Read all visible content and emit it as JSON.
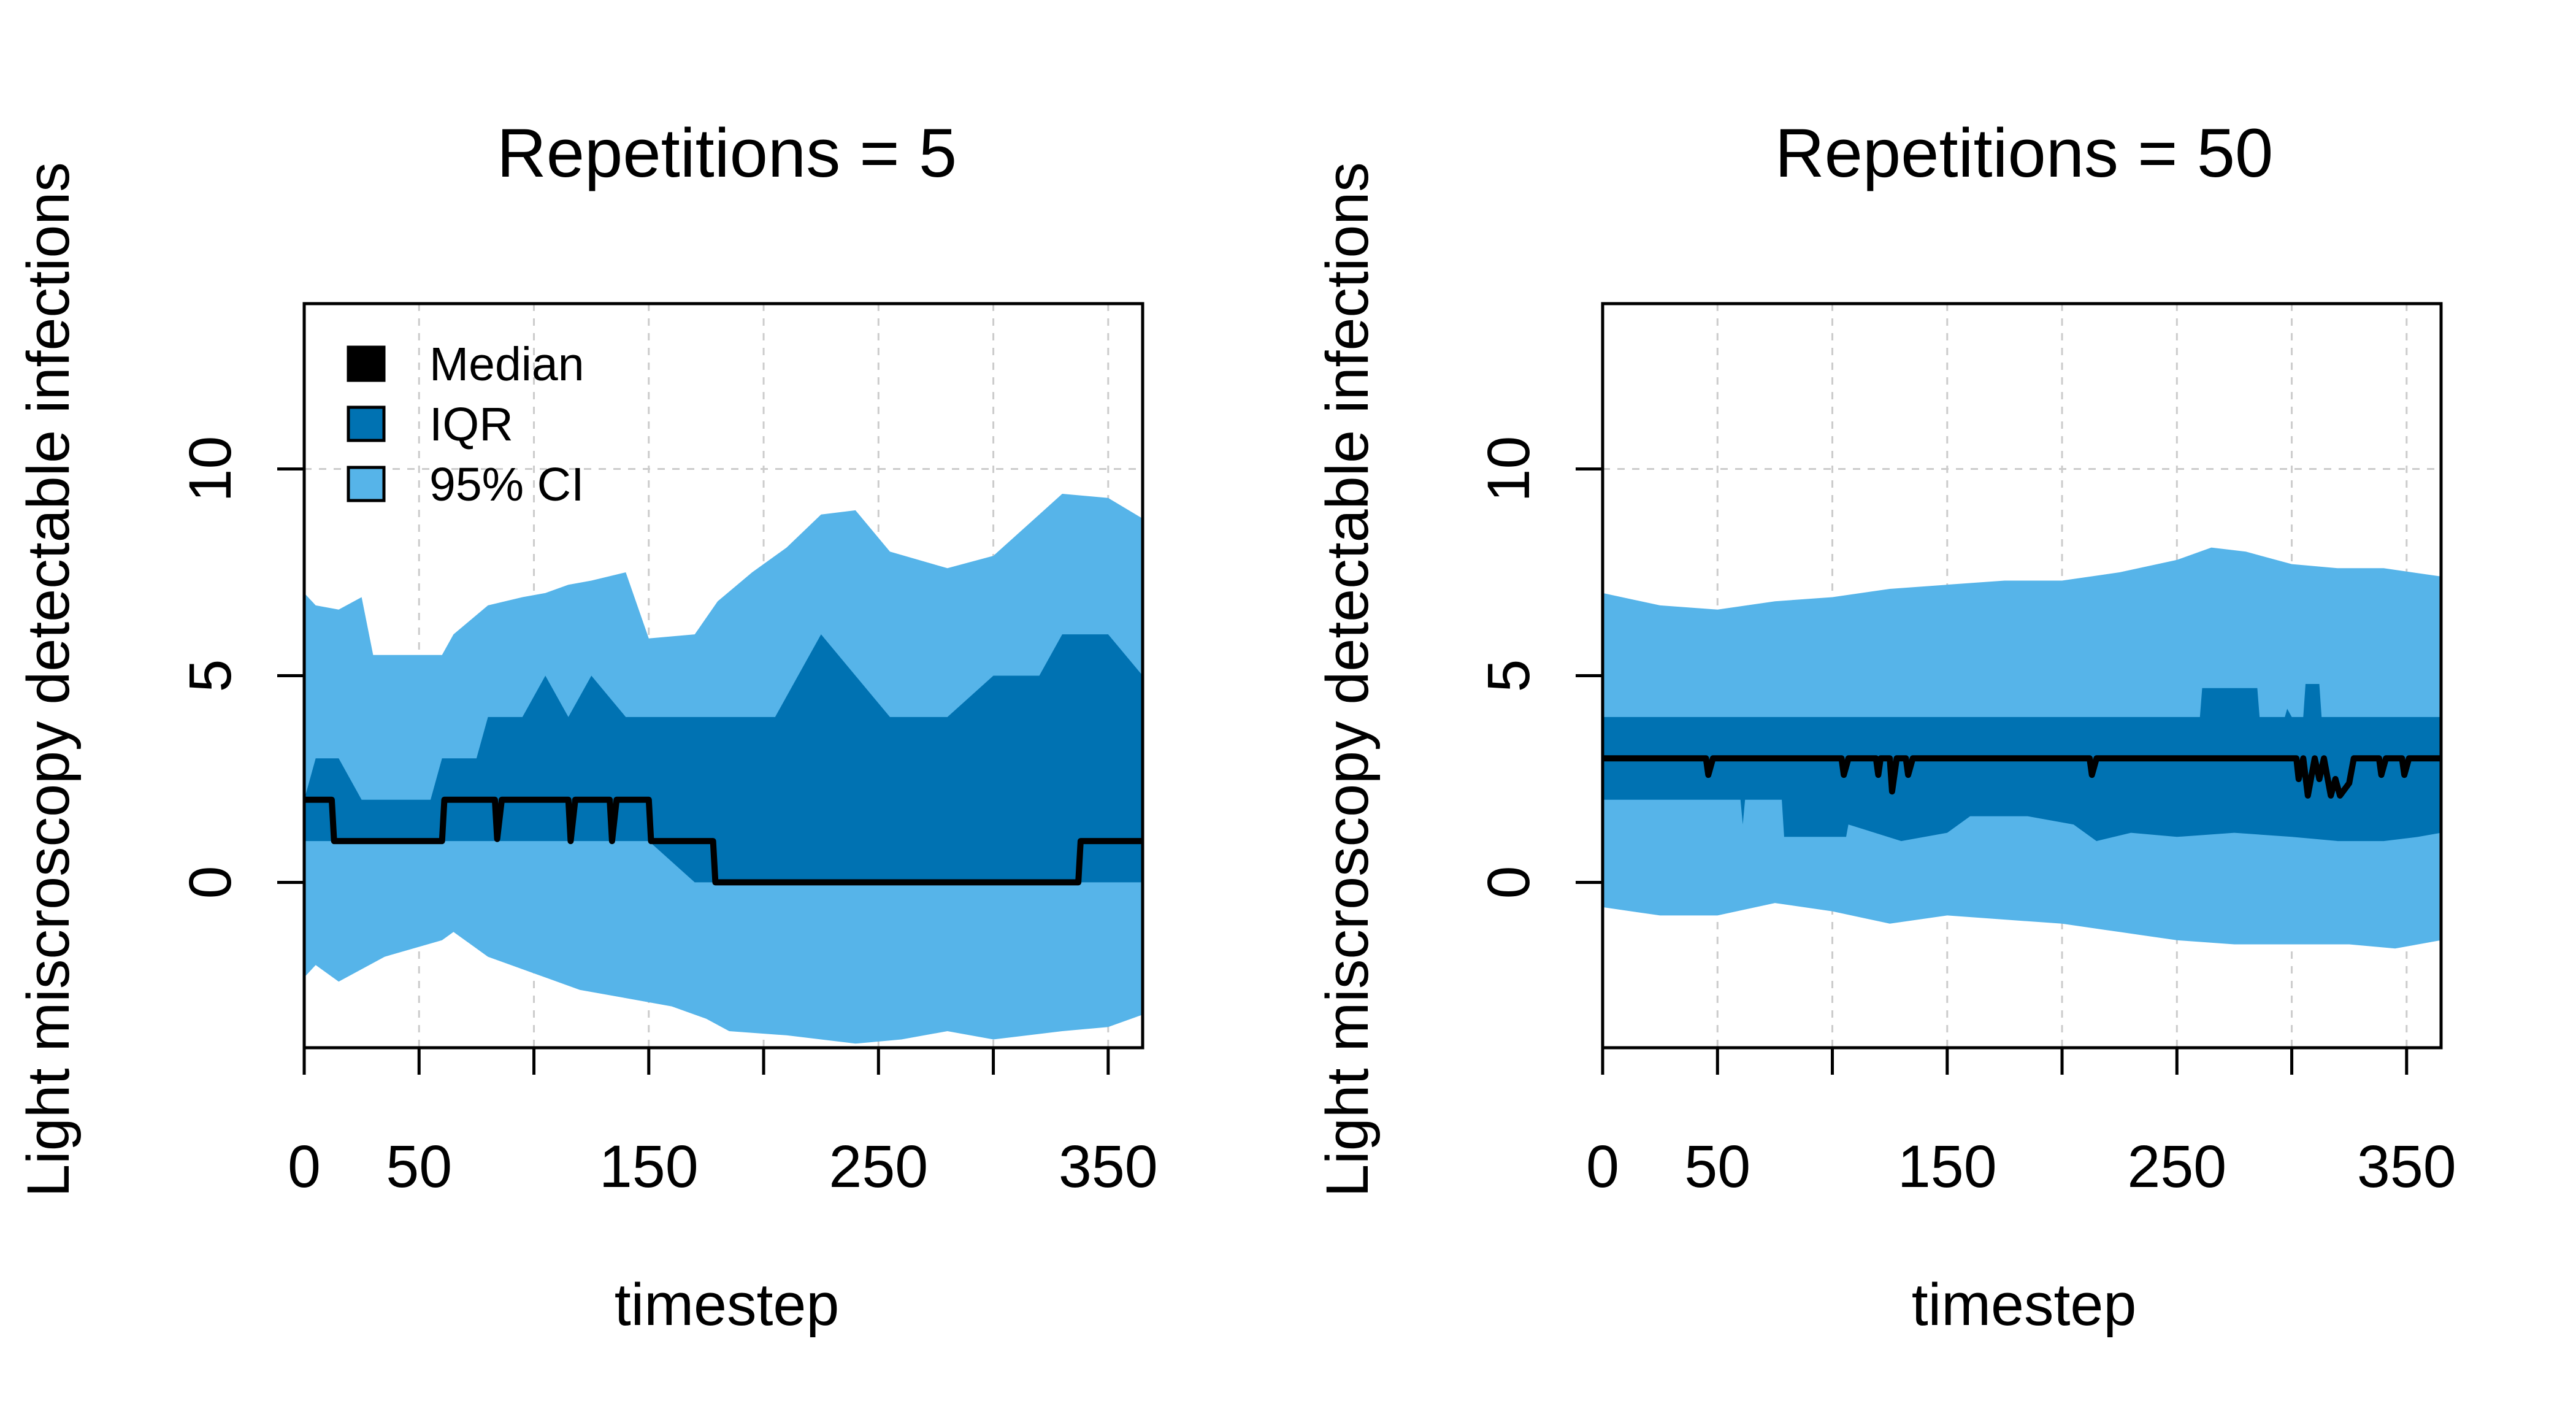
{
  "colors": {
    "median": "#000000",
    "iqr": "#0072B2",
    "ci95": "#56B4E9",
    "grid": "#cccccc"
  },
  "legend": {
    "placement": "top-left",
    "items": [
      {
        "label": "Median",
        "color": "#000000"
      },
      {
        "label": "IQR",
        "color": "#0072B2"
      },
      {
        "label": "95% CI",
        "color": "#56B4E9"
      }
    ]
  },
  "chart_data": [
    {
      "type": "area",
      "title": "Repetitions = 5",
      "xlabel": "timestep",
      "ylabel": "Light miscroscopy detectable infections",
      "xlim": [
        0,
        365
      ],
      "ylim": [
        -4,
        14
      ],
      "x_ticks": [
        0,
        50,
        100,
        150,
        200,
        250,
        300,
        350
      ],
      "x_tick_labels": [
        "0",
        "50",
        "",
        "150",
        "",
        "250",
        "",
        "350"
      ],
      "y_ticks": [
        0,
        5,
        10
      ],
      "y_tick_labels": [
        "0",
        "5",
        "10"
      ],
      "grid": true,
      "series": [
        {
          "name": "95% CI",
          "band": "ci95",
          "upper": [
            [
              0,
              7
            ],
            [
              5,
              6.7
            ],
            [
              15,
              6.6
            ],
            [
              25,
              6.9
            ],
            [
              30,
              5.5
            ],
            [
              60,
              5.5
            ],
            [
              65,
              6.0
            ],
            [
              80,
              6.7
            ],
            [
              95,
              6.9
            ],
            [
              105,
              7.0
            ],
            [
              115,
              7.2
            ],
            [
              125,
              7.3
            ],
            [
              140,
              7.5
            ],
            [
              150,
              5.9
            ],
            [
              170,
              6.0
            ],
            [
              180,
              6.8
            ],
            [
              195,
              7.5
            ],
            [
              210,
              8.1
            ],
            [
              225,
              8.9
            ],
            [
              240,
              9.0
            ],
            [
              255,
              8.0
            ],
            [
              280,
              7.6
            ],
            [
              300,
              7.9
            ],
            [
              320,
              8.9
            ],
            [
              330,
              9.4
            ],
            [
              350,
              9.3
            ],
            [
              365,
              8.8
            ]
          ],
          "lower": [
            [
              0,
              -2.3
            ],
            [
              5,
              -2.0
            ],
            [
              15,
              -2.4
            ],
            [
              35,
              -1.8
            ],
            [
              60,
              -1.4
            ],
            [
              65,
              -1.2
            ],
            [
              80,
              -1.8
            ],
            [
              100,
              -2.2
            ],
            [
              120,
              -2.6
            ],
            [
              140,
              -2.8
            ],
            [
              160,
              -3.0
            ],
            [
              175,
              -3.3
            ],
            [
              185,
              -3.6
            ],
            [
              210,
              -3.7
            ],
            [
              240,
              -3.9
            ],
            [
              260,
              -3.8
            ],
            [
              280,
              -3.6
            ],
            [
              300,
              -3.8
            ],
            [
              330,
              -3.6
            ],
            [
              350,
              -3.5
            ],
            [
              365,
              -3.2
            ]
          ]
        },
        {
          "name": "IQR",
          "band": "iqr",
          "upper": [
            [
              0,
              2
            ],
            [
              5,
              3
            ],
            [
              15,
              3
            ],
            [
              25,
              2
            ],
            [
              55,
              2
            ],
            [
              60,
              3
            ],
            [
              75,
              3
            ],
            [
              80,
              4
            ],
            [
              95,
              4
            ],
            [
              105,
              5
            ],
            [
              115,
              4
            ],
            [
              125,
              5
            ],
            [
              140,
              4
            ],
            [
              160,
              4
            ],
            [
              180,
              4
            ],
            [
              190,
              4
            ],
            [
              205,
              4
            ],
            [
              215,
              5
            ],
            [
              225,
              6
            ],
            [
              240,
              5
            ],
            [
              255,
              4
            ],
            [
              280,
              4
            ],
            [
              300,
              5
            ],
            [
              320,
              5
            ],
            [
              330,
              6
            ],
            [
              350,
              6
            ],
            [
              365,
              5
            ]
          ],
          "lower": [
            [
              0,
              1
            ],
            [
              55,
              1
            ],
            [
              60,
              1
            ],
            [
              80,
              1
            ],
            [
              150,
              1
            ],
            [
              170,
              0
            ],
            [
              178,
              0
            ],
            [
              365,
              0
            ]
          ]
        },
        {
          "name": "Median",
          "band": "median",
          "values": [
            [
              0,
              2
            ],
            [
              12,
              2
            ],
            [
              13,
              1
            ],
            [
              60,
              1
            ],
            [
              61,
              2
            ],
            [
              83,
              2
            ],
            [
              84,
              1.05
            ],
            [
              86,
              2
            ],
            [
              115,
              2
            ],
            [
              116,
              1
            ],
            [
              118,
              2
            ],
            [
              133,
              2
            ],
            [
              134,
              1
            ],
            [
              136,
              2
            ],
            [
              150,
              2
            ],
            [
              151,
              1
            ],
            [
              178,
              1
            ],
            [
              179,
              0
            ],
            [
              337,
              0
            ],
            [
              338,
              1
            ],
            [
              365,
              1
            ]
          ]
        }
      ]
    },
    {
      "type": "area",
      "title": "Repetitions = 50",
      "xlabel": "timestep",
      "ylabel": "Light miscroscopy detectable infections",
      "xlim": [
        0,
        365
      ],
      "ylim": [
        -4,
        14
      ],
      "x_ticks": [
        0,
        50,
        100,
        150,
        200,
        250,
        300,
        350
      ],
      "x_tick_labels": [
        "0",
        "50",
        "",
        "150",
        "",
        "250",
        "",
        "350"
      ],
      "y_ticks": [
        0,
        5,
        10
      ],
      "y_tick_labels": [
        "0",
        "5",
        "10"
      ],
      "grid": true,
      "series": [
        {
          "name": "95% CI",
          "band": "ci95",
          "upper": [
            [
              0,
              7.0
            ],
            [
              25,
              6.7
            ],
            [
              50,
              6.6
            ],
            [
              75,
              6.8
            ],
            [
              100,
              6.9
            ],
            [
              125,
              7.1
            ],
            [
              150,
              7.2
            ],
            [
              175,
              7.3
            ],
            [
              200,
              7.3
            ],
            [
              225,
              7.5
            ],
            [
              250,
              7.8
            ],
            [
              265,
              8.1
            ],
            [
              280,
              8.0
            ],
            [
              300,
              7.7
            ],
            [
              320,
              7.6
            ],
            [
              340,
              7.6
            ],
            [
              365,
              7.4
            ]
          ],
          "lower": [
            [
              0,
              -0.6
            ],
            [
              25,
              -0.8
            ],
            [
              50,
              -0.8
            ],
            [
              75,
              -0.5
            ],
            [
              100,
              -0.7
            ],
            [
              125,
              -1.0
            ],
            [
              150,
              -0.8
            ],
            [
              175,
              -0.9
            ],
            [
              200,
              -1.0
            ],
            [
              225,
              -1.2
            ],
            [
              250,
              -1.4
            ],
            [
              275,
              -1.5
            ],
            [
              300,
              -1.5
            ],
            [
              325,
              -1.5
            ],
            [
              345,
              -1.6
            ],
            [
              365,
              -1.4
            ]
          ]
        },
        {
          "name": "IQR",
          "band": "iqr",
          "upper": [
            [
              0,
              4
            ],
            [
              260,
              4
            ],
            [
              261,
              4.7
            ],
            [
              285,
              4.7
            ],
            [
              286,
              4
            ],
            [
              297,
              4
            ],
            [
              298,
              4.2
            ],
            [
              300,
              4
            ],
            [
              298,
              4
            ],
            [
              305,
              4
            ],
            [
              306,
              4.8
            ],
            [
              312,
              4.8
            ],
            [
              313,
              4
            ],
            [
              365,
              4
            ]
          ],
          "lower": [
            [
              0,
              2
            ],
            [
              60,
              2
            ],
            [
              61,
              1.4
            ],
            [
              62,
              2
            ],
            [
              78,
              2
            ],
            [
              79,
              1.1
            ],
            [
              106,
              1.1
            ],
            [
              107,
              1.4
            ],
            [
              130,
              1.0
            ],
            [
              150,
              1.2
            ],
            [
              160,
              1.6
            ],
            [
              185,
              1.6
            ],
            [
              205,
              1.4
            ],
            [
              215,
              1.0
            ],
            [
              230,
              1.2
            ],
            [
              250,
              1.1
            ],
            [
              275,
              1.2
            ],
            [
              300,
              1.1
            ],
            [
              320,
              1.0
            ],
            [
              340,
              1.0
            ],
            [
              355,
              1.1
            ],
            [
              365,
              1.2
            ]
          ]
        },
        {
          "name": "Median",
          "band": "median",
          "values": [
            [
              0,
              3
            ],
            [
              45,
              3
            ],
            [
              46,
              2.6
            ],
            [
              48,
              3
            ],
            [
              104,
              3
            ],
            [
              105,
              2.6
            ],
            [
              107,
              3
            ],
            [
              119,
              3
            ],
            [
              120,
              2.6
            ],
            [
              121,
              3
            ],
            [
              125,
              3
            ],
            [
              126,
              2.2
            ],
            [
              128,
              3
            ],
            [
              132,
              3
            ],
            [
              133,
              2.6
            ],
            [
              135,
              3
            ],
            [
              212,
              3
            ],
            [
              213,
              2.6
            ],
            [
              215,
              3
            ],
            [
              302,
              3
            ],
            [
              303,
              2.5
            ],
            [
              305,
              3
            ],
            [
              307,
              2.1
            ],
            [
              310,
              3
            ],
            [
              312,
              2.5
            ],
            [
              314,
              3
            ],
            [
              317,
              2.1
            ],
            [
              319,
              2.5
            ],
            [
              321,
              2.1
            ],
            [
              325,
              2.4
            ],
            [
              327,
              3
            ],
            [
              338,
              3
            ],
            [
              339,
              2.6
            ],
            [
              341,
              3
            ],
            [
              348,
              3
            ],
            [
              349,
              2.6
            ],
            [
              351,
              3
            ],
            [
              365,
              3
            ]
          ]
        }
      ]
    }
  ]
}
